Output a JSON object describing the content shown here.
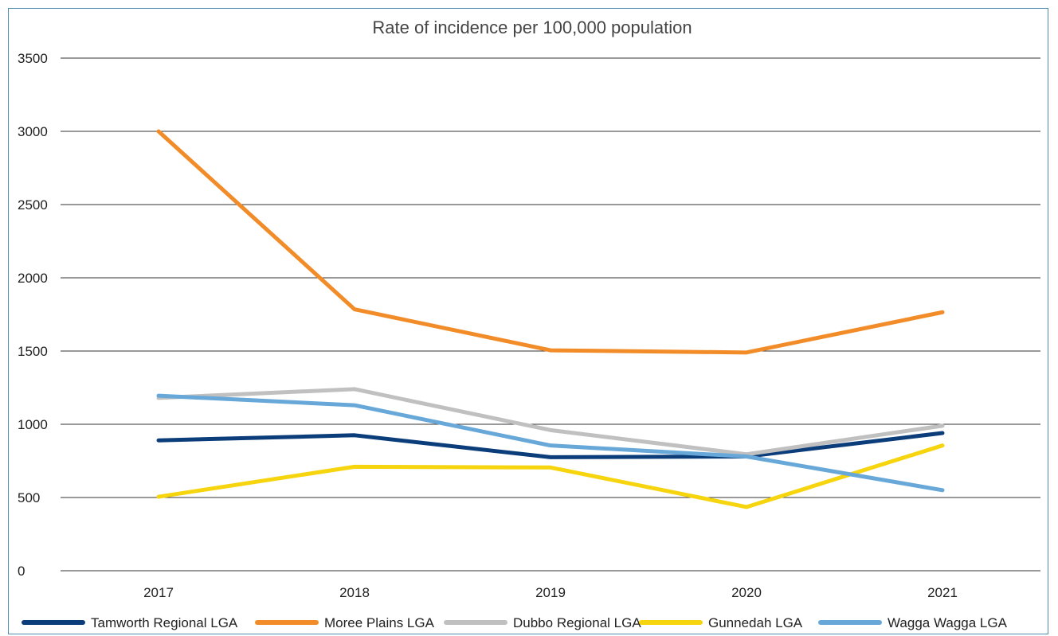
{
  "chart_data": {
    "type": "line",
    "title": "Rate of incidence per 100,000 population",
    "xlabel": "",
    "ylabel": "",
    "categories": [
      "2017",
      "2018",
      "2019",
      "2020",
      "2021"
    ],
    "ylim": [
      0,
      3500
    ],
    "yticks": [
      0,
      500,
      1000,
      1500,
      2000,
      2500,
      3000,
      3500
    ],
    "grid": true,
    "legend_position": "bottom",
    "series": [
      {
        "name": "Tamworth Regional LGA",
        "color": "#0b3d7a",
        "values": [
          890,
          925,
          775,
          780,
          940
        ]
      },
      {
        "name": "Moree Plains LGA",
        "color": "#f28c28",
        "values": [
          3000,
          1785,
          1505,
          1490,
          1765
        ]
      },
      {
        "name": "Dubbo Regional LGA",
        "color": "#c0c0c0",
        "values": [
          1180,
          1240,
          960,
          795,
          990
        ]
      },
      {
        "name": "Gunnedah LGA",
        "color": "#f6d50f",
        "values": [
          505,
          710,
          705,
          435,
          855
        ]
      },
      {
        "name": "Wagga Wagga LGA",
        "color": "#67a8d9",
        "values": [
          1195,
          1130,
          855,
          780,
          550
        ]
      }
    ]
  }
}
